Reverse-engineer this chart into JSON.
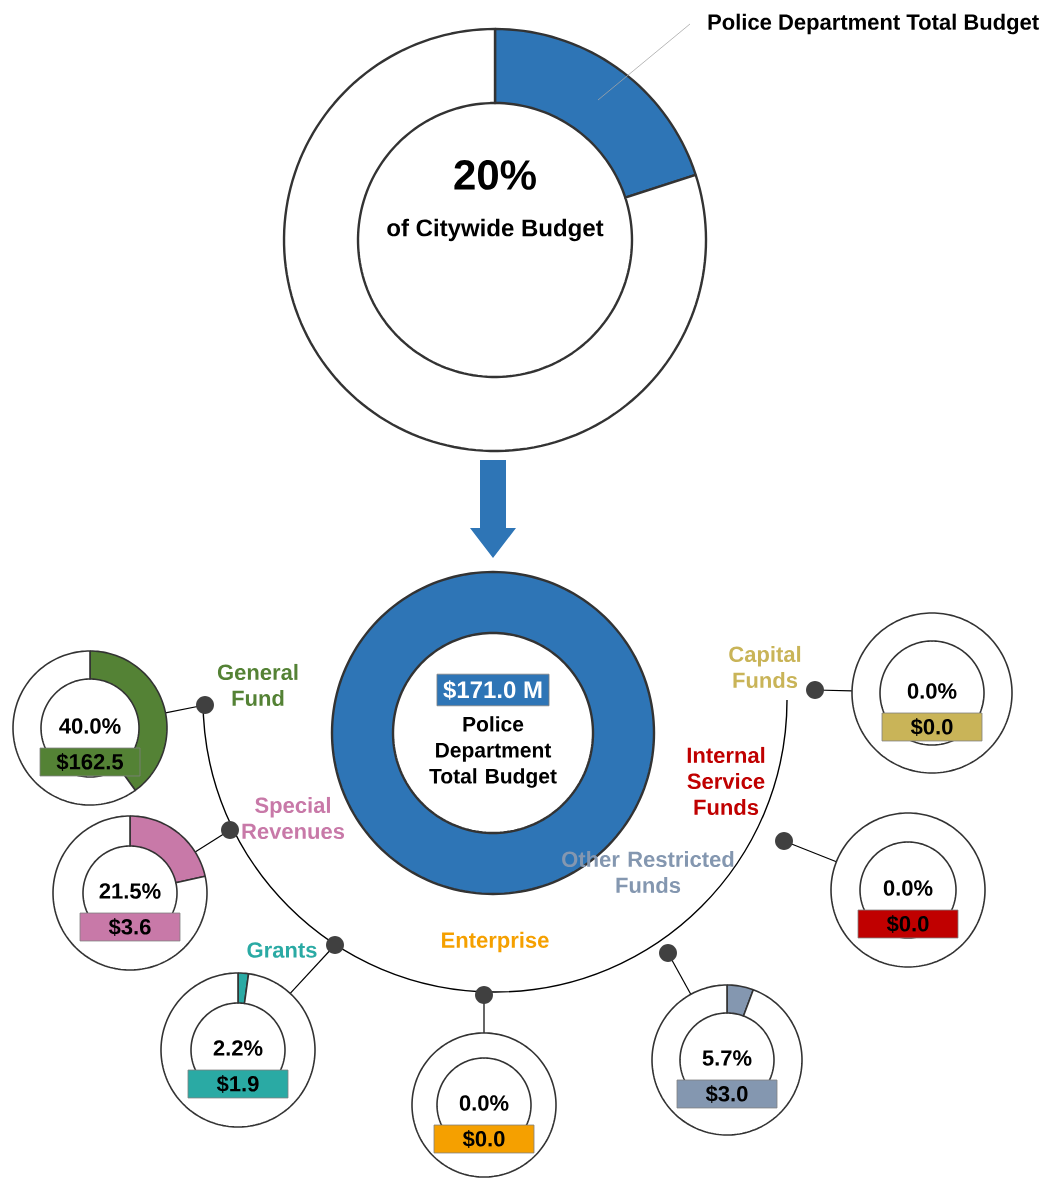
{
  "chart_data": [
    {
      "type": "donut",
      "categories": [
        "Police Department Total Budget",
        null
      ],
      "values": [
        20,
        80
      ],
      "colors": [
        "#2e75b6",
        "#ffffff"
      ],
      "value_labels": [
        "20%",
        null
      ],
      "annotations": [
        "of Citywide Budget"
      ]
    },
    {
      "type": "donut",
      "title": "Police Department Total Budget",
      "categories": [
        null
      ],
      "values": [
        100
      ],
      "colors": [
        "#2e75b6"
      ],
      "annotations": [
        "$171.0 M"
      ]
    },
    {
      "type": "donut",
      "title": "General Fund",
      "categories": [
        null,
        null
      ],
      "values": [
        40,
        60
      ],
      "colors": [
        "#548235",
        "#ffffff"
      ],
      "value_labels": [
        "40.0%",
        null
      ],
      "annotations": [
        "$162.5"
      ]
    },
    {
      "type": "donut",
      "title": "Special Revenues",
      "categories": [
        null,
        null
      ],
      "values": [
        21.5,
        78.5
      ],
      "colors": [
        "#c879a8",
        "#ffffff"
      ],
      "value_labels": [
        "21.5%",
        null
      ],
      "annotations": [
        "$3.6"
      ]
    },
    {
      "type": "donut",
      "title": "Grants",
      "categories": [
        null,
        null
      ],
      "values": [
        2.2,
        97.8
      ],
      "colors": [
        "#2aaaa4",
        "#ffffff"
      ],
      "value_labels": [
        "2.2%",
        null
      ],
      "annotations": [
        "$1.9"
      ]
    },
    {
      "type": "donut",
      "title": "Enterprise",
      "categories": [
        null,
        null
      ],
      "values": [
        0,
        100
      ],
      "colors": [
        "#f5a000",
        "#ffffff"
      ],
      "value_labels": [
        "0.0%",
        null
      ],
      "annotations": [
        "$0.0"
      ]
    },
    {
      "type": "donut",
      "title": "Other Restricted Funds",
      "categories": [
        null,
        null
      ],
      "values": [
        5.7,
        94.3
      ],
      "colors": [
        "#8497b0",
        "#ffffff"
      ],
      "value_labels": [
        "5.7%",
        null
      ],
      "annotations": [
        "$3.0"
      ]
    },
    {
      "type": "donut",
      "title": "Internal Service Funds",
      "categories": [
        null,
        null
      ],
      "values": [
        0,
        100
      ],
      "colors": [
        "#c00000",
        "#ffffff"
      ],
      "value_labels": [
        "0.0%",
        null
      ],
      "annotations": [
        "$0.0"
      ]
    },
    {
      "type": "donut",
      "title": "Capital Funds",
      "categories": [
        null,
        null
      ],
      "values": [
        0,
        100
      ],
      "colors": [
        "#c9b458",
        "#ffffff"
      ],
      "value_labels": [
        "0.0%",
        null
      ],
      "annotations": [
        "$0.0"
      ]
    }
  ]
}
